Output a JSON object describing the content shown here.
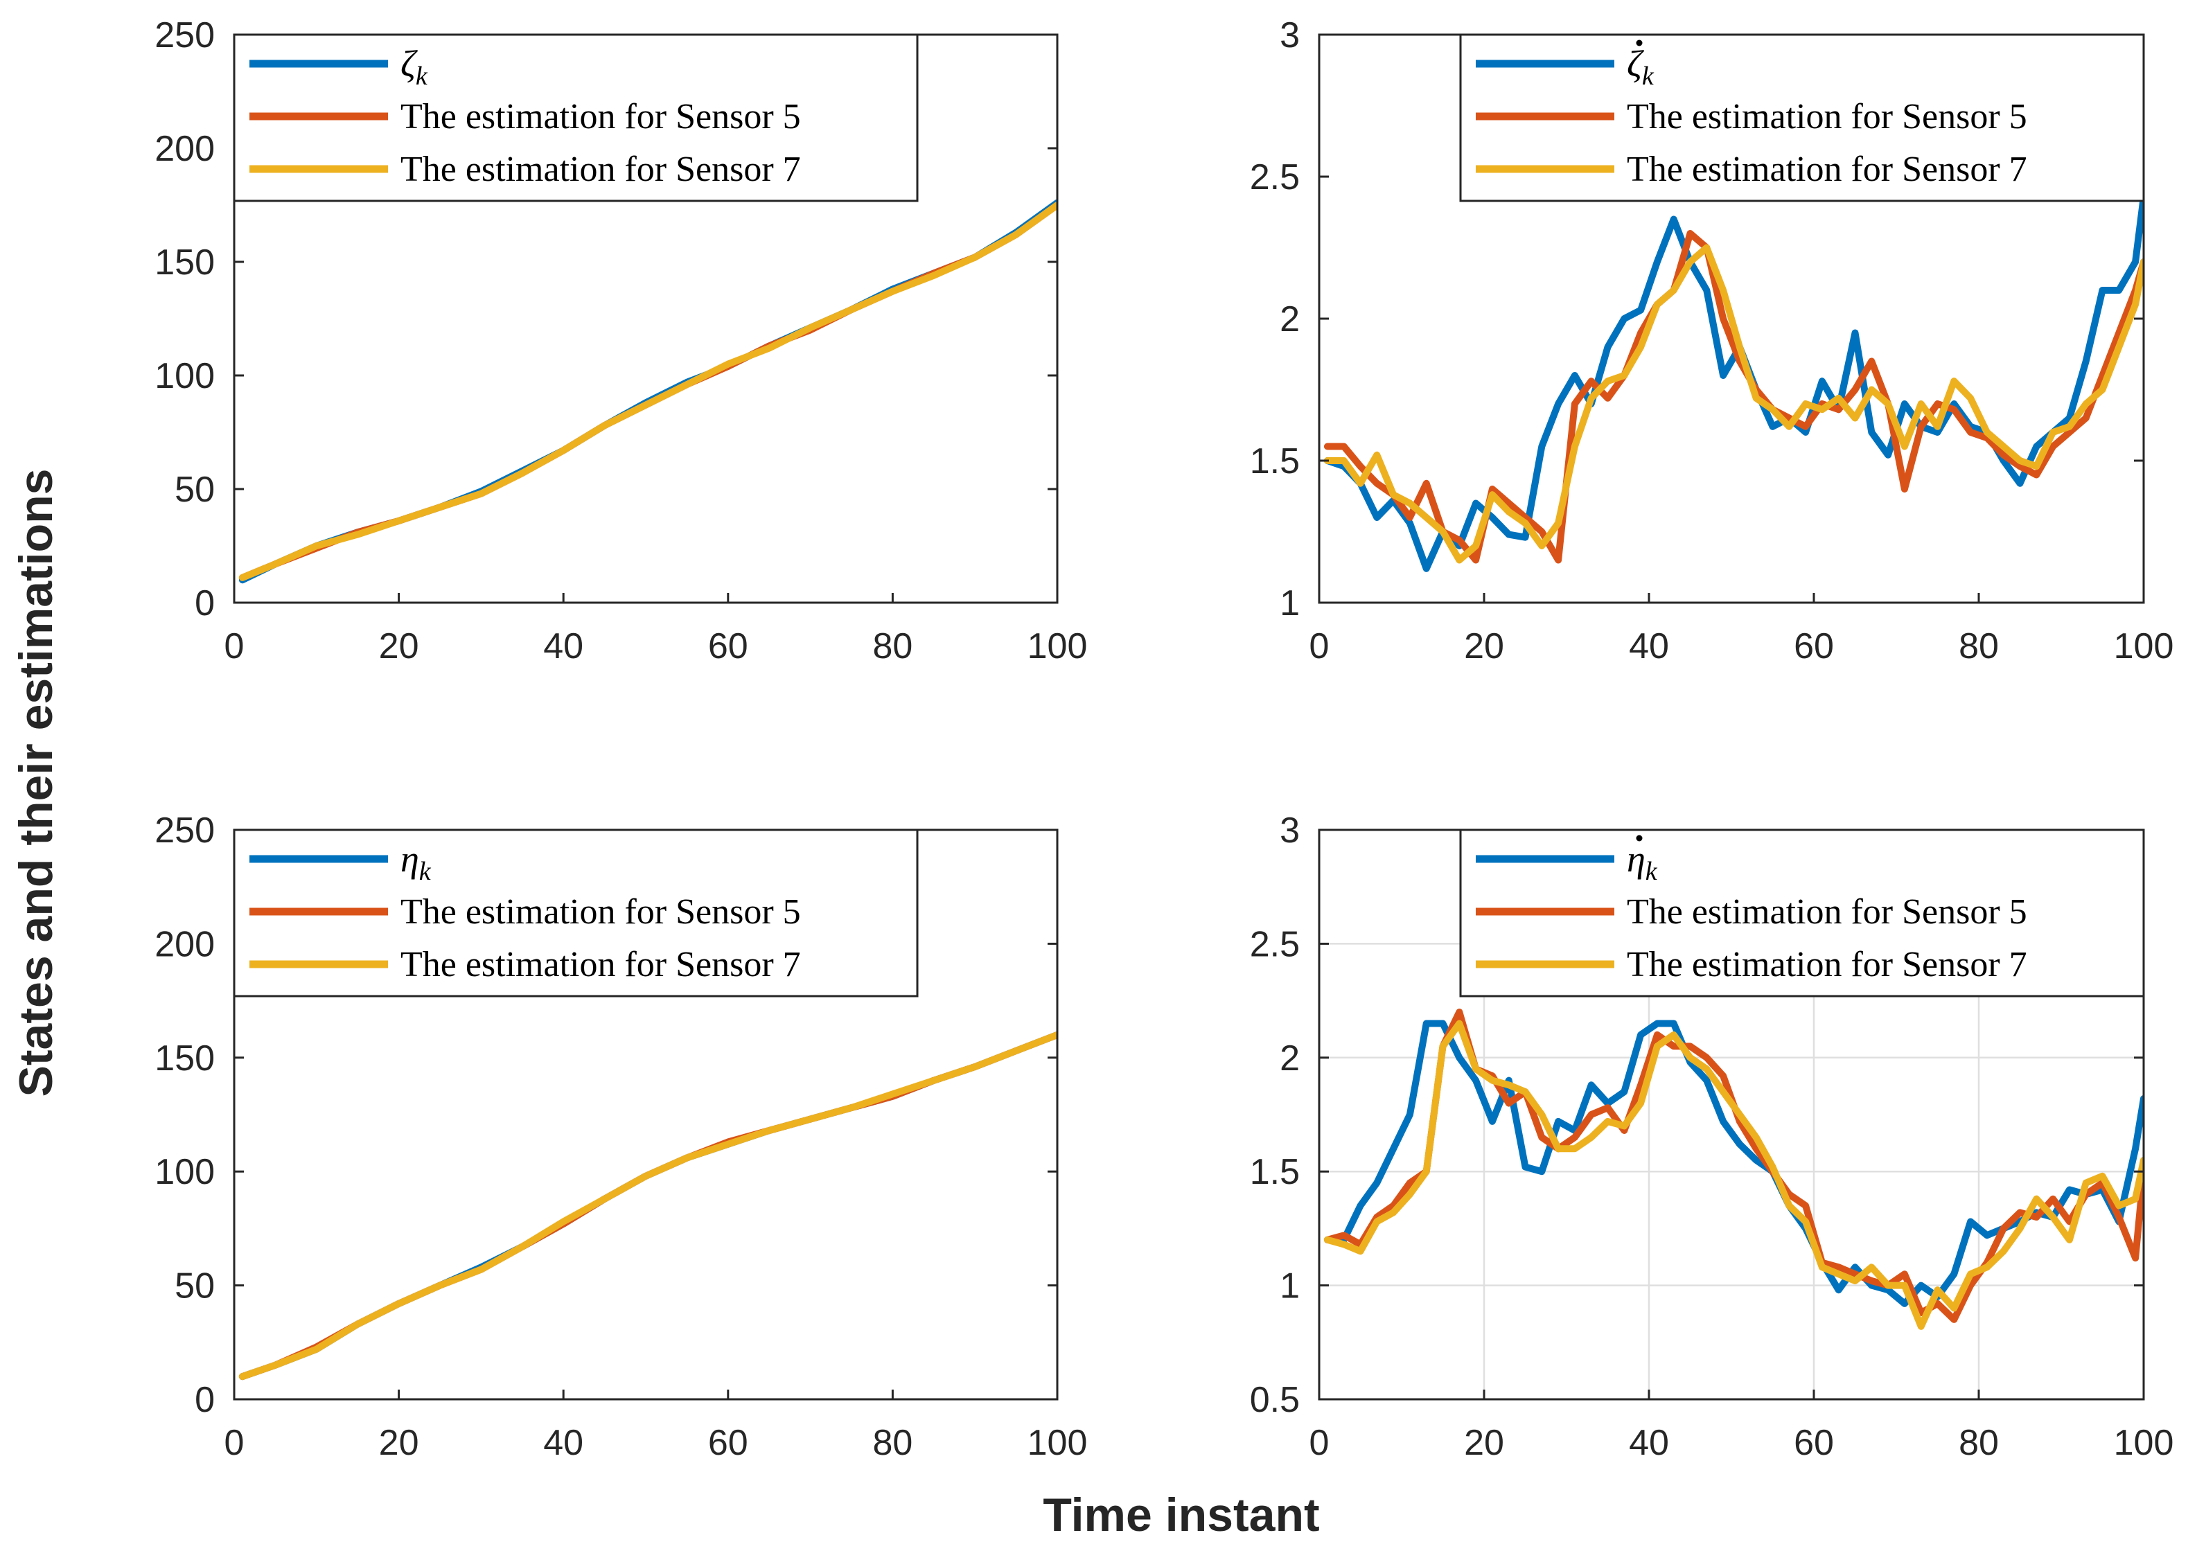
{
  "figure": {
    "ylabel": "States and their estimations",
    "xlabel": "Time instant"
  },
  "colors": {
    "truth": "#0072BD",
    "sensor5": "#D95319",
    "sensor7": "#EDB120",
    "axis": "#262626",
    "grid": "#DFDFDF"
  },
  "chart_data": [
    {
      "type": "line",
      "id": "zeta",
      "xlim": [
        0,
        100
      ],
      "ylim": [
        0,
        250
      ],
      "xticks": [
        "0",
        "20",
        "40",
        "60",
        "80",
        "100"
      ],
      "yticks": [
        "0",
        "50",
        "100",
        "150",
        "200",
        "250"
      ],
      "grid": false,
      "legend": {
        "position": "top-left",
        "symbol": "ζ",
        "sub": "k",
        "dot": false,
        "items": [
          "The estimation for Sensor 5",
          "The estimation for Sensor 7"
        ]
      },
      "x": [
        1,
        5,
        10,
        15,
        20,
        25,
        30,
        35,
        40,
        45,
        50,
        55,
        60,
        65,
        70,
        75,
        80,
        85,
        90,
        95,
        100
      ],
      "series": [
        {
          "name": "ζ_k",
          "values": [
            10,
            17,
            25,
            31,
            36,
            42,
            49,
            58,
            67,
            78,
            88,
            97,
            104,
            113,
            121,
            129,
            138,
            145,
            152,
            163,
            176
          ]
        },
        {
          "name": "The estimation for Sensor 5",
          "values": [
            11,
            17,
            24,
            31,
            36,
            42,
            48,
            57,
            67,
            78,
            87,
            96,
            104,
            113,
            120,
            129,
            137,
            145,
            152,
            162,
            175
          ]
        },
        {
          "name": "The estimation for Sensor 7",
          "values": [
            11,
            17,
            25,
            30,
            36,
            42,
            48,
            57,
            67,
            78,
            87,
            96,
            105,
            112,
            121,
            129,
            137,
            144,
            152,
            162,
            175
          ]
        }
      ]
    },
    {
      "type": "line",
      "id": "zeta-dot",
      "xlim": [
        0,
        100
      ],
      "ylim": [
        1,
        3
      ],
      "xticks": [
        "0",
        "20",
        "40",
        "60",
        "80",
        "100"
      ],
      "yticks": [
        "1",
        "1.5",
        "2",
        "2.5",
        "3"
      ],
      "grid": false,
      "legend": {
        "position": "top-right",
        "symbol": "ζ",
        "sub": "k",
        "dot": true,
        "items": [
          "The estimation for Sensor 5",
          "The estimation for Sensor 7"
        ]
      },
      "x": [
        1,
        3,
        5,
        7,
        9,
        11,
        13,
        15,
        17,
        19,
        21,
        23,
        25,
        27,
        29,
        31,
        33,
        35,
        37,
        39,
        41,
        43,
        45,
        47,
        49,
        51,
        53,
        55,
        57,
        59,
        61,
        63,
        65,
        67,
        69,
        71,
        73,
        75,
        77,
        79,
        81,
        83,
        85,
        87,
        89,
        91,
        93,
        95,
        97,
        99,
        100
      ],
      "series": [
        {
          "name": "ζ̇_k",
          "values": [
            1.5,
            1.48,
            1.42,
            1.3,
            1.36,
            1.28,
            1.12,
            1.25,
            1.2,
            1.35,
            1.3,
            1.24,
            1.23,
            1.55,
            1.7,
            1.8,
            1.7,
            1.9,
            2.0,
            2.03,
            2.2,
            2.35,
            2.2,
            2.1,
            1.8,
            1.9,
            1.75,
            1.62,
            1.65,
            1.6,
            1.78,
            1.68,
            1.95,
            1.6,
            1.52,
            1.7,
            1.62,
            1.6,
            1.7,
            1.62,
            1.6,
            1.5,
            1.42,
            1.55,
            1.6,
            1.65,
            1.85,
            2.1,
            2.1,
            2.2,
            2.43
          ]
        },
        {
          "name": "The estimation for Sensor 5",
          "values": [
            1.55,
            1.55,
            1.48,
            1.42,
            1.38,
            1.3,
            1.42,
            1.25,
            1.22,
            1.15,
            1.4,
            1.35,
            1.3,
            1.25,
            1.15,
            1.7,
            1.78,
            1.72,
            1.8,
            1.95,
            2.05,
            2.1,
            2.3,
            2.25,
            2.0,
            1.85,
            1.75,
            1.68,
            1.65,
            1.62,
            1.7,
            1.68,
            1.75,
            1.85,
            1.7,
            1.4,
            1.62,
            1.7,
            1.68,
            1.6,
            1.58,
            1.52,
            1.48,
            1.45,
            1.55,
            1.6,
            1.65,
            1.8,
            1.95,
            2.1,
            2.2
          ]
        },
        {
          "name": "The estimation for Sensor 7",
          "values": [
            1.5,
            1.5,
            1.42,
            1.52,
            1.38,
            1.35,
            1.3,
            1.25,
            1.15,
            1.2,
            1.38,
            1.32,
            1.28,
            1.2,
            1.28,
            1.55,
            1.72,
            1.78,
            1.8,
            1.9,
            2.05,
            2.1,
            2.2,
            2.25,
            2.1,
            1.9,
            1.72,
            1.68,
            1.62,
            1.7,
            1.68,
            1.72,
            1.65,
            1.75,
            1.7,
            1.55,
            1.7,
            1.62,
            1.78,
            1.72,
            1.6,
            1.55,
            1.5,
            1.48,
            1.6,
            1.62,
            1.7,
            1.75,
            1.9,
            2.05,
            2.2
          ]
        }
      ]
    },
    {
      "type": "line",
      "id": "eta",
      "xlim": [
        0,
        100
      ],
      "ylim": [
        0,
        250
      ],
      "xticks": [
        "0",
        "20",
        "40",
        "60",
        "80",
        "100"
      ],
      "yticks": [
        "0",
        "50",
        "100",
        "150",
        "200",
        "250"
      ],
      "grid": false,
      "legend": {
        "position": "top-left",
        "symbol": "η",
        "sub": "k",
        "dot": false,
        "items": [
          "The estimation for Sensor 5",
          "The estimation for Sensor 7"
        ]
      },
      "x": [
        1,
        5,
        10,
        15,
        20,
        25,
        30,
        35,
        40,
        45,
        50,
        55,
        60,
        65,
        70,
        75,
        80,
        85,
        90,
        95,
        100
      ],
      "series": [
        {
          "name": "η_k",
          "values": [
            10,
            15,
            22,
            33,
            42,
            50,
            58,
            67,
            77,
            88,
            98,
            106,
            112,
            118,
            123,
            128,
            133,
            140,
            146,
            153,
            160
          ]
        },
        {
          "name": "The estimation for Sensor 5",
          "values": [
            10,
            15,
            23,
            33,
            42,
            50,
            57,
            67,
            77,
            88,
            98,
            106,
            113,
            118,
            123,
            128,
            133,
            140,
            146,
            153,
            160
          ]
        },
        {
          "name": "The estimation for Sensor 7",
          "values": [
            10,
            15,
            22,
            33,
            42,
            50,
            57,
            67,
            78,
            88,
            98,
            106,
            112,
            118,
            123,
            128,
            134,
            140,
            146,
            153,
            160
          ]
        }
      ]
    },
    {
      "type": "line",
      "id": "eta-dot",
      "xlim": [
        0,
        100
      ],
      "ylim": [
        0.5,
        3
      ],
      "xticks": [
        "0",
        "20",
        "40",
        "60",
        "80",
        "100"
      ],
      "yticks": [
        "0.5",
        "1",
        "1.5",
        "2",
        "2.5",
        "3"
      ],
      "grid": true,
      "legend": {
        "position": "top-right",
        "symbol": "η",
        "sub": "k",
        "dot": true,
        "items": [
          "The estimation for Sensor 5",
          "The estimation for Sensor 7"
        ]
      },
      "x": [
        1,
        3,
        5,
        7,
        9,
        11,
        13,
        15,
        17,
        19,
        21,
        23,
        25,
        27,
        29,
        31,
        33,
        35,
        37,
        39,
        41,
        43,
        45,
        47,
        49,
        51,
        53,
        55,
        57,
        59,
        61,
        63,
        65,
        67,
        69,
        71,
        73,
        75,
        77,
        79,
        81,
        83,
        85,
        87,
        89,
        91,
        93,
        95,
        97,
        99,
        100
      ],
      "series": [
        {
          "name": "η̇_k",
          "values": [
            1.2,
            1.2,
            1.35,
            1.45,
            1.6,
            1.75,
            2.15,
            2.15,
            2.0,
            1.9,
            1.72,
            1.9,
            1.52,
            1.5,
            1.72,
            1.68,
            1.88,
            1.8,
            1.85,
            2.1,
            2.15,
            2.15,
            1.98,
            1.9,
            1.72,
            1.62,
            1.55,
            1.5,
            1.35,
            1.25,
            1.1,
            0.98,
            1.08,
            1.0,
            0.98,
            0.92,
            1.0,
            0.95,
            1.05,
            1.28,
            1.22,
            1.25,
            1.28,
            1.32,
            1.3,
            1.42,
            1.4,
            1.42,
            1.28,
            1.6,
            1.82
          ]
        },
        {
          "name": "The estimation for Sensor 5",
          "values": [
            1.2,
            1.22,
            1.18,
            1.3,
            1.35,
            1.45,
            1.5,
            2.05,
            2.2,
            1.95,
            1.92,
            1.8,
            1.85,
            1.65,
            1.6,
            1.65,
            1.75,
            1.78,
            1.68,
            1.88,
            2.1,
            2.05,
            2.05,
            2.0,
            1.92,
            1.72,
            1.6,
            1.5,
            1.4,
            1.35,
            1.1,
            1.08,
            1.05,
            1.02,
            1.0,
            1.05,
            0.88,
            0.92,
            0.85,
            1.0,
            1.1,
            1.25,
            1.32,
            1.3,
            1.38,
            1.28,
            1.4,
            1.45,
            1.3,
            1.12,
            1.5
          ]
        },
        {
          "name": "The estimation for Sensor 7",
          "values": [
            1.2,
            1.18,
            1.15,
            1.28,
            1.32,
            1.4,
            1.5,
            2.05,
            2.15,
            1.95,
            1.9,
            1.88,
            1.85,
            1.75,
            1.6,
            1.6,
            1.65,
            1.72,
            1.7,
            1.8,
            2.05,
            2.1,
            2.0,
            1.95,
            1.85,
            1.75,
            1.65,
            1.52,
            1.35,
            1.28,
            1.08,
            1.05,
            1.02,
            1.08,
            1.0,
            1.0,
            0.82,
            0.98,
            0.9,
            1.05,
            1.08,
            1.15,
            1.25,
            1.38,
            1.3,
            1.2,
            1.45,
            1.48,
            1.35,
            1.38,
            1.55
          ]
        }
      ]
    }
  ]
}
